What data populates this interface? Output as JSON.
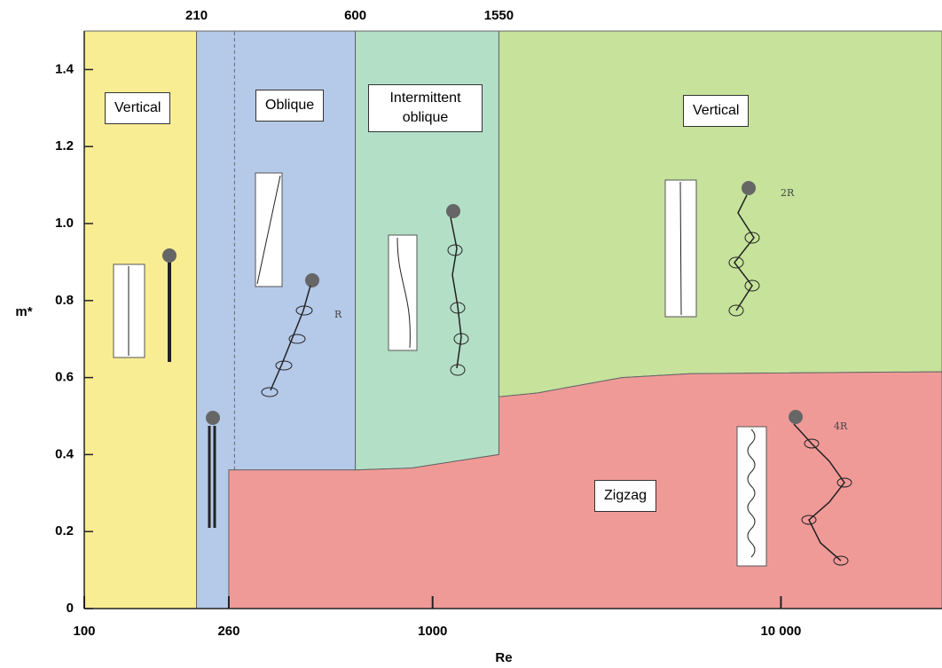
{
  "chart_data": {
    "type": "regime-map",
    "xlabel": "Re",
    "ylabel": "m*",
    "xscale": "log",
    "xlim": [
      100,
      29000
    ],
    "ylim": [
      0,
      1.5
    ],
    "xticks": [
      100,
      260,
      1000,
      {
        "value": 10000,
        "label": "10 000"
      }
    ],
    "xticks_top": [
      210,
      600,
      1550
    ],
    "yticks": [
      0,
      0.2,
      0.4,
      0.6,
      0.8,
      {
        "value": 1,
        "label": "1.0"
      },
      1.2,
      1.4
    ],
    "regions": [
      {
        "name": "Vertical",
        "color": "#f9ed93",
        "x": [
          100,
          210,
          210,
          100
        ],
        "y": [
          0,
          0,
          1.5,
          1.5
        ]
      },
      {
        "name": "Oblique",
        "color": "#b5c9e8",
        "x": [
          210,
          260,
          260,
          600,
          600,
          210
        ],
        "y": [
          0,
          0,
          0.36,
          0.36,
          1.5,
          1.5
        ]
      },
      {
        "name": "Intermittent oblique",
        "color": "#b4dfc7",
        "x": [
          600,
          870,
          1550,
          1550,
          600
        ],
        "y": [
          0.36,
          0.365,
          0.4,
          1.5,
          1.5
        ]
      },
      {
        "name": "Vertical",
        "color": "#c6e29b",
        "x": [
          1550,
          2000,
          3500,
          5500,
          29000,
          29000,
          1550
        ],
        "y": [
          0.55,
          0.56,
          0.6,
          0.61,
          0.615,
          1.5,
          1.5
        ]
      },
      {
        "name": "Zigzag",
        "color": "#f09a98",
        "x": [
          260,
          260,
          600,
          870,
          1550,
          1550,
          2000,
          3500,
          5500,
          29000,
          29000
        ],
        "y": [
          0,
          0.36,
          0.36,
          0.365,
          0.4,
          0.55,
          0.56,
          0.6,
          0.61,
          0.615,
          0
        ]
      }
    ],
    "dashed_boundary": {
      "x": 270,
      "y": [
        0.36,
        1.5
      ]
    },
    "annotations": [
      "R",
      "2R",
      "4R"
    ]
  }
}
